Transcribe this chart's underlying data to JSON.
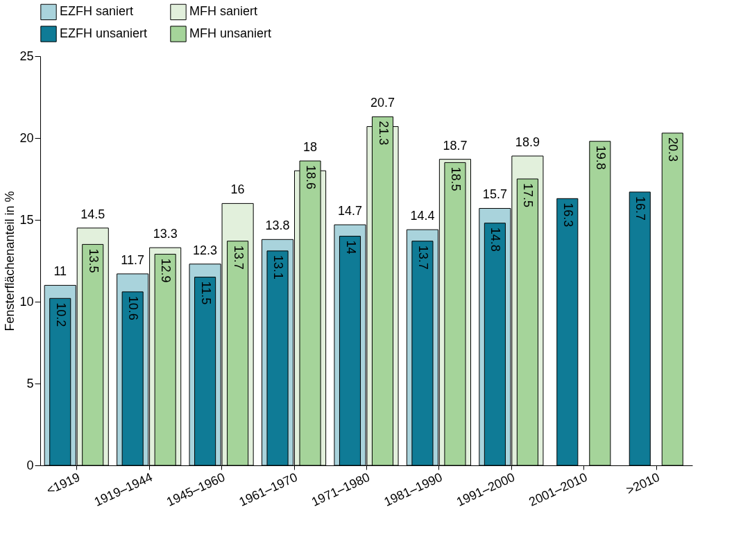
{
  "chart_data": {
    "type": "bar",
    "ylabel": "Fensterflächenanteil in %",
    "categories": [
      "<1919",
      "1919–1944",
      "1945–1960",
      "1961–1970",
      "1971–1980",
      "1981–1990",
      "1991–2000",
      "2001–2010",
      ">2010"
    ],
    "series": [
      {
        "name": "EZFH saniert",
        "color": "#a9d3dc",
        "values": [
          11,
          11.7,
          12.3,
          13.8,
          14.7,
          14.4,
          15.7,
          null,
          null
        ]
      },
      {
        "name": "EZFH unsaniert",
        "color": "#0f7b96",
        "values": [
          10.2,
          10.6,
          11.5,
          13.1,
          14,
          13.7,
          14.8,
          16.3,
          16.7
        ]
      },
      {
        "name": "MFH saniert",
        "color": "#e2f0dc",
        "values": [
          14.5,
          13.3,
          16,
          18,
          20.7,
          18.7,
          18.9,
          null,
          null
        ]
      },
      {
        "name": "MFH unsaniert",
        "color": "#a5d49a",
        "values": [
          13.5,
          12.9,
          13.7,
          18.6,
          21.3,
          18.5,
          17.5,
          19.8,
          20.3
        ]
      }
    ],
    "ylim": [
      0,
      25
    ],
    "yticks": [
      0,
      5,
      10,
      15,
      20,
      25
    ],
    "grid": false,
    "legend": "top",
    "data_labels": true
  }
}
